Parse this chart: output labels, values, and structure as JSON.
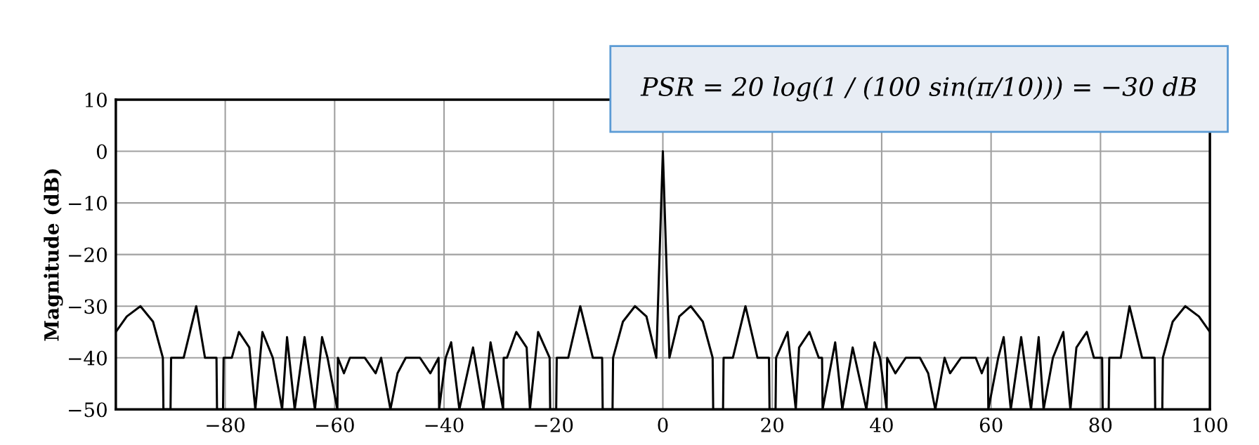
{
  "chart_data": {
    "type": "line",
    "ylabel": "Magnitude (dB)",
    "xlim": [
      -100,
      100
    ],
    "xticks": [
      -80,
      -60,
      -40,
      -20,
      0,
      20,
      40,
      60,
      80,
      100
    ],
    "ylim": [
      -50,
      10
    ],
    "yticks": [
      10,
      0,
      -10,
      -20,
      -30,
      -40,
      -50
    ],
    "grid": true,
    "series": [
      {
        "color": "#000000",
        "x": [
          -100,
          -98,
          -95.5,
          -93.2,
          -91.4,
          -91.3,
          -90,
          -89.9,
          -87.6,
          -85.3,
          -83.7,
          -81.6,
          -81.5,
          -80.4,
          -80.3,
          -78.8,
          -77.5,
          -75.6,
          -74.5,
          -73.2,
          -71.3,
          -69.6,
          -68.7,
          -67.3,
          -65.5,
          -63.6,
          -62.3,
          -61.3,
          -59.5,
          -59.4,
          -58.3,
          -57.2,
          -54.5,
          -52.5,
          -51.5,
          -49.8,
          -48.5,
          -47,
          -44.4,
          -42.5,
          -41,
          -40.9,
          -39.7,
          -38.7,
          -37.2,
          -34.7,
          -32.8,
          -31.5,
          -29.2,
          -29.1,
          -28.5,
          -26.8,
          -24.9,
          -24.3,
          -22.8,
          -20.7,
          -20.6,
          -19.5,
          -19.4,
          -17.3,
          -15.1,
          -12.8,
          -11.1,
          -11,
          -9.2,
          -9.1,
          -7.3,
          -5.1,
          -3,
          -1.2,
          0,
          1.2,
          3,
          5.1,
          7.3,
          9.1,
          9.2,
          11,
          11.1,
          12.8,
          15.1,
          17.3,
          19.4,
          19.5,
          20.6,
          20.7,
          22.8,
          24.3,
          24.9,
          26.8,
          28.5,
          29.1,
          29.2,
          31.5,
          32.8,
          34.7,
          37.2,
          38.7,
          39.7,
          40.9,
          41,
          42.5,
          44.4,
          47,
          48.5,
          49.8,
          51.5,
          52.5,
          54.5,
          57.2,
          58.3,
          59.4,
          59.5,
          61.3,
          62.3,
          63.6,
          65.5,
          67.3,
          68.7,
          69.6,
          71.3,
          73.2,
          74.5,
          75.6,
          77.5,
          78.8,
          80.3,
          80.4,
          81.5,
          81.6,
          83.7,
          85.3,
          87.6,
          89.9,
          90,
          91.3,
          91.4,
          93.2,
          95.5,
          98,
          100
        ],
        "values": [
          -35,
          -32,
          -30,
          -33,
          -40,
          -50,
          -50,
          -40,
          -40,
          -30,
          -40,
          -40,
          -50,
          -50,
          -40,
          -40,
          -35,
          -38,
          -50,
          -35,
          -40,
          -50,
          -36,
          -50,
          -36,
          -50,
          -36,
          -40,
          -50,
          -40,
          -43,
          -40,
          -40,
          -43,
          -40,
          -50,
          -43,
          -40,
          -40,
          -43,
          -40,
          -50,
          -40,
          -37,
          -50,
          -38,
          -50,
          -37,
          -50,
          -40,
          -40,
          -35,
          -38,
          -50,
          -35,
          -40,
          -50,
          -50,
          -40,
          -40,
          -30,
          -40,
          -40,
          -50,
          -50,
          -40,
          -33,
          -30,
          -32,
          -40,
          0,
          -40,
          -32,
          -30,
          -33,
          -40,
          -50,
          -50,
          -40,
          -40,
          -30,
          -40,
          -40,
          -50,
          -50,
          -40,
          -35,
          -50,
          -38,
          -35,
          -40,
          -40,
          -50,
          -37,
          -50,
          -38,
          -50,
          -37,
          -40,
          -50,
          -40,
          -43,
          -40,
          -40,
          -43,
          -50,
          -40,
          -43,
          -40,
          -40,
          -43,
          -40,
          -50,
          -40,
          -36,
          -50,
          -36,
          -50,
          -36,
          -50,
          -40,
          -35,
          -50,
          -38,
          -35,
          -40,
          -40,
          -50,
          -50,
          -40,
          -40,
          -30,
          -40,
          -40,
          -50,
          -50,
          -40,
          -33,
          -30,
          -32,
          -35
        ]
      }
    ],
    "annotations": [
      "PSR = 20 log(1 / (100 sin(π/10))) = −30 dB"
    ]
  }
}
